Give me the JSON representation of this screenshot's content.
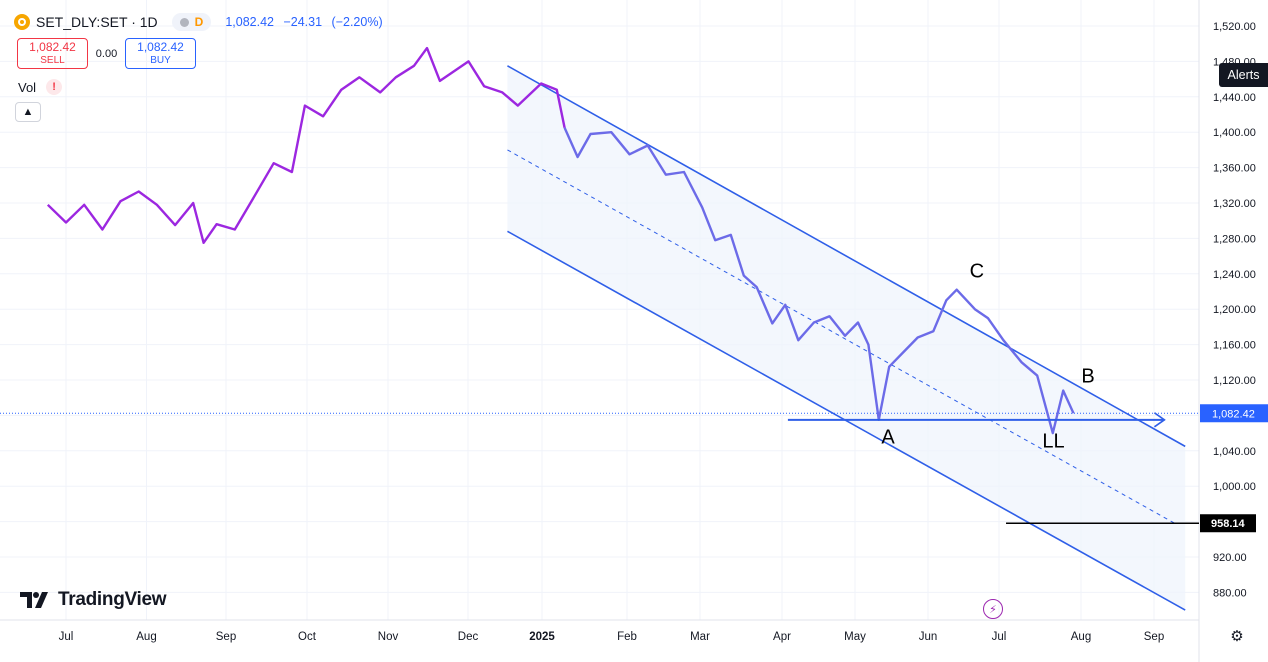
{
  "header": {
    "symbol": "SET_DLY:SET · 1D",
    "badge": "D",
    "last": "1,082.42",
    "change": "−24.31",
    "change_pct": "(−2.20%)"
  },
  "trade": {
    "sell_price": "1,082.42",
    "sell_label": "SELL",
    "spread": "0.00",
    "buy_price": "1,082.42",
    "buy_label": "BUY"
  },
  "indicator": {
    "label": "Vol",
    "warning": "!"
  },
  "toolbar": {
    "alerts_label": "Alerts"
  },
  "brand": {
    "name": "TradingView"
  },
  "colors": {
    "price_line_early": "#9c27e0",
    "price_line_late": "#6c6be8",
    "channel": "#2f5fe8",
    "channel_fill": "#eef3fc",
    "sell": "#f23645",
    "buy": "#2962ff"
  },
  "icons": {
    "collapse": "chevron-up-icon",
    "settings": "gear-icon",
    "event": "lightning-icon"
  },
  "chart_data": {
    "type": "line",
    "title": "SET_DLY:SET · 1D",
    "x_ticks": [
      "Jul",
      "Aug",
      "Sep",
      "Oct",
      "Nov",
      "Dec",
      "2025",
      "Feb",
      "Mar",
      "Apr",
      "May",
      "Jun",
      "Jul",
      "Aug",
      "Sep"
    ],
    "y_ticks": [
      "1,520.00",
      "1,480.00",
      "1,440.00",
      "1,400.00",
      "1,360.00",
      "1,320.00",
      "1,280.00",
      "1,240.00",
      "1,200.00",
      "1,160.00",
      "1,120.00",
      "1,080.00",
      "1,040.00",
      "1,000.00",
      "960.00",
      "920.00",
      "880.00"
    ],
    "y_tick_values": [
      1520,
      1480,
      1440,
      1400,
      1360,
      1320,
      1280,
      1240,
      1200,
      1160,
      1120,
      1080,
      1040,
      1000,
      960,
      920,
      880
    ],
    "y_tick_labels_visible": [
      "1,520.00",
      "1,480.00",
      "1,440.00",
      "1,400.00",
      "1,360.00",
      "1,320.00",
      "1,280.00",
      "1,240.00",
      "1,200.00",
      "1,160.00",
      "1,120.00",
      "",
      "1,040.00",
      "1,000.00",
      "",
      "920.00",
      "880.00"
    ],
    "ylim": [
      850,
      1545
    ],
    "grid": true,
    "series": [
      {
        "values": [
          [
            "2024-06-24",
            1318
          ],
          [
            "2024-07-01",
            1298
          ],
          [
            "2024-07-08",
            1318
          ],
          [
            "2024-07-15",
            1290
          ],
          [
            "2024-07-22",
            1322
          ],
          [
            "2024-07-29",
            1333
          ],
          [
            "2024-08-05",
            1318
          ],
          [
            "2024-08-12",
            1295
          ],
          [
            "2024-08-19",
            1320
          ],
          [
            "2024-08-23",
            1275
          ],
          [
            "2024-08-28",
            1296
          ],
          [
            "2024-09-04",
            1290
          ],
          [
            "2024-09-12",
            1330
          ],
          [
            "2024-09-19",
            1365
          ],
          [
            "2024-09-26",
            1355
          ],
          [
            "2024-10-01",
            1430
          ],
          [
            "2024-10-08",
            1418
          ],
          [
            "2024-10-15",
            1448
          ],
          [
            "2024-10-22",
            1462
          ],
          [
            "2024-10-30",
            1445
          ],
          [
            "2024-11-05",
            1462
          ],
          [
            "2024-11-12",
            1475
          ],
          [
            "2024-11-17",
            1495
          ],
          [
            "2024-11-22",
            1458
          ],
          [
            "2024-11-28",
            1470
          ],
          [
            "2024-12-03",
            1480
          ],
          [
            "2024-12-09",
            1452
          ],
          [
            "2024-12-16",
            1445
          ],
          [
            "2024-12-22",
            1430
          ],
          [
            "2024-12-31",
            1455
          ],
          [
            "2025-01-06",
            1448
          ],
          [
            "2025-01-09",
            1405
          ]
        ]
      },
      {
        "values": [
          [
            "2025-01-09",
            1405
          ],
          [
            "2025-01-14",
            1372
          ],
          [
            "2025-01-19",
            1398
          ],
          [
            "2025-01-27",
            1400
          ],
          [
            "2025-02-03",
            1375
          ],
          [
            "2025-02-10",
            1385
          ],
          [
            "2025-02-17",
            1352
          ],
          [
            "2025-02-24",
            1355
          ],
          [
            "2025-03-03",
            1315
          ],
          [
            "2025-03-08",
            1278
          ],
          [
            "2025-03-14",
            1284
          ],
          [
            "2025-03-19",
            1238
          ],
          [
            "2025-03-24",
            1225
          ],
          [
            "2025-03-30",
            1184
          ],
          [
            "2025-04-04",
            1205
          ],
          [
            "2025-04-09",
            1165
          ],
          [
            "2025-04-15",
            1185
          ],
          [
            "2025-04-21",
            1192
          ],
          [
            "2025-04-27",
            1170
          ],
          [
            "2025-05-02",
            1185
          ],
          [
            "2025-05-06",
            1160
          ],
          [
            "2025-05-10",
            1075
          ],
          [
            "2025-05-14",
            1135
          ],
          [
            "2025-05-19",
            1150
          ],
          [
            "2025-05-25",
            1168
          ],
          [
            "2025-05-31",
            1175
          ],
          [
            "2025-06-05",
            1210
          ],
          [
            "2025-06-09",
            1222
          ],
          [
            "2025-06-16",
            1200
          ],
          [
            "2025-06-21",
            1190
          ],
          [
            "2025-06-27",
            1165
          ],
          [
            "2025-07-04",
            1140
          ],
          [
            "2025-07-10",
            1125
          ],
          [
            "2025-07-16",
            1060
          ],
          [
            "2025-07-20",
            1108
          ],
          [
            "2025-07-24",
            1082.42
          ]
        ]
      }
    ],
    "channel": {
      "upper": [
        [
          "2024-12-18",
          1475
        ],
        [
          "2025-09-05",
          1045
        ]
      ],
      "middle": [
        [
          "2024-12-18",
          1380
        ],
        [
          "2025-09-01",
          958
        ]
      ],
      "lower": [
        [
          "2024-12-18",
          1288
        ],
        [
          "2025-09-05",
          860
        ]
      ]
    },
    "horizontal_lines": [
      {
        "y": 1075,
        "from": "2025-04-05",
        "to": "2025-08-28",
        "arrow": true
      },
      {
        "y": 958.14,
        "from": "2025-06-28",
        "to": "2025-09-20"
      }
    ],
    "last_price_label": "1,082.42",
    "level_label": "958.14",
    "annotations": [
      {
        "text": "A",
        "x": "2025-05-11",
        "y": 1048
      },
      {
        "text": "C",
        "x": "2025-06-14",
        "y": 1236
      },
      {
        "text": "B",
        "x": "2025-07-27",
        "y": 1117
      },
      {
        "text": "LL",
        "x": "2025-07-12",
        "y": 1044
      }
    ]
  }
}
